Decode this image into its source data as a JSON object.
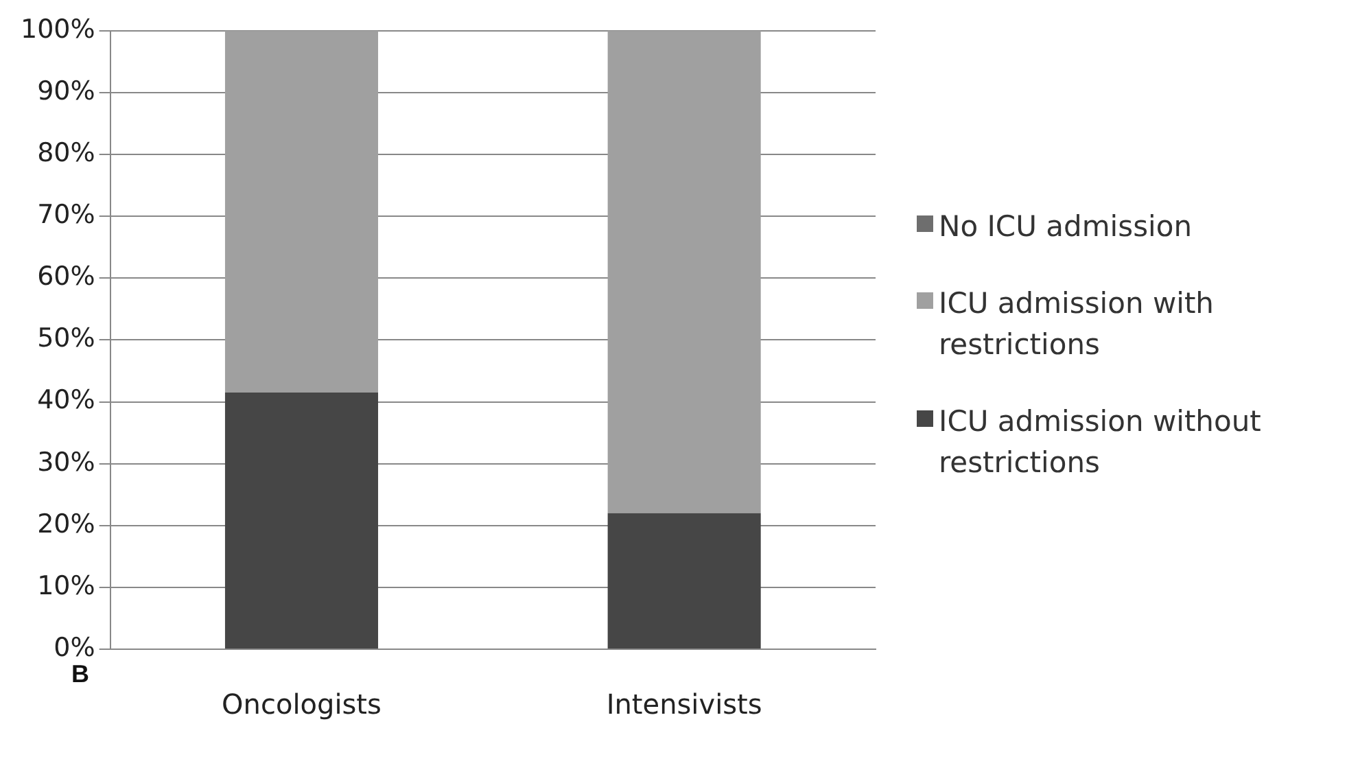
{
  "chart_data": {
    "type": "bar",
    "stacked": true,
    "categories": [
      "Oncologists",
      "Intensivists"
    ],
    "series": [
      {
        "name": "ICU admission without restrictions",
        "color": "#464646",
        "values": [
          41.5,
          22
        ]
      },
      {
        "name": "ICU admission with restrictions",
        "color": "#a0a0a0",
        "values": [
          58.5,
          78
        ]
      },
      {
        "name": "No ICU admission",
        "color": "#6e6e6e",
        "values": [
          0,
          0
        ]
      }
    ],
    "ylim": [
      0,
      100
    ],
    "yticks": [
      {
        "value": 0,
        "label": "0%"
      },
      {
        "value": 10,
        "label": "10%"
      },
      {
        "value": 20,
        "label": "20%"
      },
      {
        "value": 30,
        "label": "30%"
      },
      {
        "value": 40,
        "label": "40%"
      },
      {
        "value": 50,
        "label": "50%"
      },
      {
        "value": 60,
        "label": "60%"
      },
      {
        "value": 70,
        "label": "70%"
      },
      {
        "value": 80,
        "label": "80%"
      },
      {
        "value": 90,
        "label": "90%"
      },
      {
        "value": 100,
        "label": "100%"
      }
    ],
    "grid": "y",
    "legend": "right",
    "annotations": [
      "B"
    ]
  }
}
